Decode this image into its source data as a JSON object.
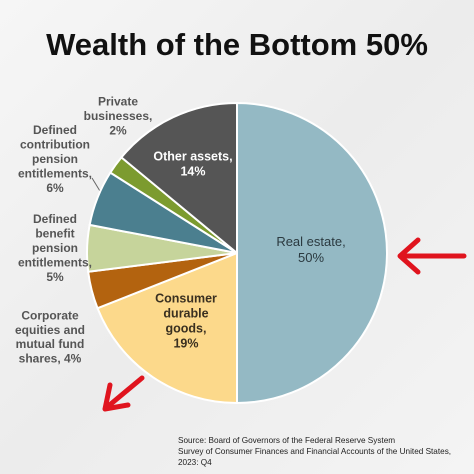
{
  "chart_data": {
    "type": "pie",
    "title": "Wealth of the Bottom 50%",
    "values": [
      50,
      19,
      4,
      5,
      6,
      2,
      14
    ],
    "value_labels": [
      "Real estate,\n50%",
      "Consumer\ndurable\ngoods,\n19%",
      "Corporate\nequities and\nmutual fund\nshares, 4%",
      "Defined\nbenefit\npension\nentitlements,\n5%",
      "Defined\ncontribution\npension\nentitlements,\n6%",
      "Private\nbusinesses,\n2%",
      "Other assets,\n14%"
    ],
    "colors": [
      "#94b9c4",
      "#fcd98b",
      "#b3630f",
      "#c6d49b",
      "#4b7f8f",
      "#7c9b2f",
      "#555555"
    ],
    "source": [
      "Source: Board of Governors of the Federal Reserve System",
      "Survey of Consumer Finances and Financial Accounts of the United States,",
      "2023: Q4"
    ]
  }
}
